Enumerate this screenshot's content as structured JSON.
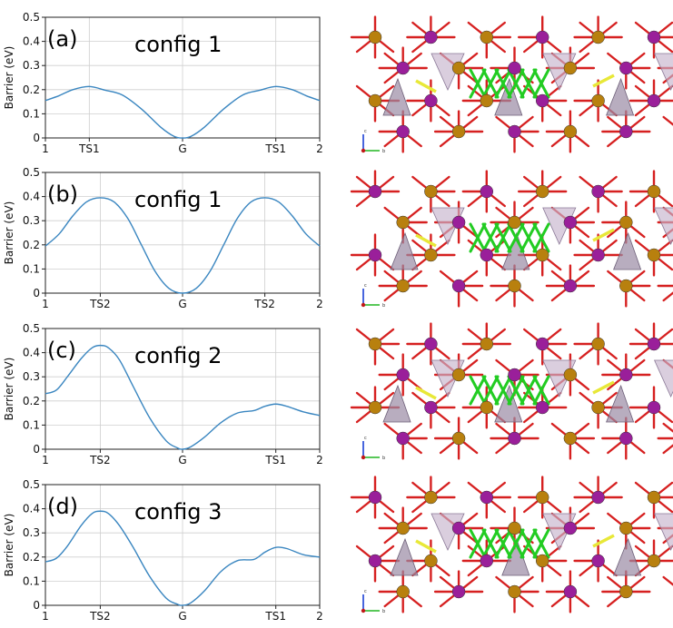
{
  "curve_color": "#3a86c0",
  "atom_colors": {
    "bond": "#d62020",
    "gold": "#b8800e",
    "purple": "#9a1f9a",
    "green": "#22cc22",
    "yellow": "#e8e838",
    "polyhedron": "#9a8aa4"
  },
  "axis_icon": {
    "c": "c",
    "b": "b"
  },
  "chart_data": [
    {
      "type": "line",
      "panel_label": "(a)",
      "annotation": "config 1",
      "ylabel": "Barrier (eV)",
      "xlabel": "",
      "xlim": [
        0,
        1
      ],
      "ylim": [
        0,
        0.5
      ],
      "yticks": [
        "0",
        "0.1",
        "0.2",
        "0.3",
        "0.4",
        "0.5"
      ],
      "x_ticks": [
        {
          "label": "1",
          "x": 0.0
        },
        {
          "label": "TS1",
          "x": 0.16
        },
        {
          "label": "G",
          "x": 0.5
        },
        {
          "label": "TS1",
          "x": 0.84
        },
        {
          "label": "2",
          "x": 1.0
        }
      ],
      "grid": true,
      "x": [
        0,
        0.05,
        0.1,
        0.16,
        0.22,
        0.28,
        0.35,
        0.42,
        0.47,
        0.5,
        0.53,
        0.58,
        0.65,
        0.72,
        0.78,
        0.84,
        0.9,
        0.95,
        1.0
      ],
      "y": [
        0.155,
        0.175,
        0.2,
        0.213,
        0.197,
        0.178,
        0.12,
        0.045,
        0.006,
        0.0,
        0.006,
        0.045,
        0.12,
        0.178,
        0.197,
        0.213,
        0.2,
        0.175,
        0.155
      ]
    },
    {
      "type": "line",
      "panel_label": "(b)",
      "annotation": "config 1",
      "ylabel": "Barrier (eV)",
      "xlabel": "",
      "xlim": [
        0,
        1
      ],
      "ylim": [
        0,
        0.5
      ],
      "yticks": [
        "0",
        "0.1",
        "0.2",
        "0.3",
        "0.4",
        "0.5"
      ],
      "x_ticks": [
        {
          "label": "1",
          "x": 0.0
        },
        {
          "label": "TS2",
          "x": 0.2
        },
        {
          "label": "G",
          "x": 0.5
        },
        {
          "label": "TS2",
          "x": 0.8
        },
        {
          "label": "2",
          "x": 1.0
        }
      ],
      "grid": true,
      "x": [
        0,
        0.05,
        0.1,
        0.15,
        0.2,
        0.25,
        0.3,
        0.35,
        0.4,
        0.45,
        0.5,
        0.55,
        0.6,
        0.65,
        0.7,
        0.75,
        0.8,
        0.85,
        0.9,
        0.95,
        1.0
      ],
      "y": [
        0.195,
        0.245,
        0.32,
        0.378,
        0.395,
        0.378,
        0.31,
        0.2,
        0.09,
        0.02,
        0.0,
        0.02,
        0.09,
        0.2,
        0.31,
        0.378,
        0.395,
        0.378,
        0.32,
        0.245,
        0.195
      ]
    },
    {
      "type": "line",
      "panel_label": "(c)",
      "annotation": "config 2",
      "ylabel": "Barrier (eV)",
      "xlabel": "",
      "xlim": [
        0,
        1
      ],
      "ylim": [
        0,
        0.5
      ],
      "yticks": [
        "0",
        "0.1",
        "0.2",
        "0.3",
        "0.4",
        "0.5"
      ],
      "x_ticks": [
        {
          "label": "1",
          "x": 0.0
        },
        {
          "label": "TS2",
          "x": 0.2
        },
        {
          "label": "G",
          "x": 0.5
        },
        {
          "label": "TS1",
          "x": 0.84
        },
        {
          "label": "2",
          "x": 1.0
        }
      ],
      "grid": true,
      "x": [
        0,
        0.04,
        0.08,
        0.13,
        0.17,
        0.2,
        0.23,
        0.27,
        0.32,
        0.38,
        0.44,
        0.48,
        0.5,
        0.53,
        0.58,
        0.64,
        0.7,
        0.76,
        0.8,
        0.84,
        0.88,
        0.94,
        1.0
      ],
      "y": [
        0.23,
        0.245,
        0.3,
        0.375,
        0.42,
        0.43,
        0.42,
        0.37,
        0.26,
        0.13,
        0.035,
        0.006,
        0.0,
        0.01,
        0.05,
        0.11,
        0.15,
        0.16,
        0.178,
        0.187,
        0.178,
        0.155,
        0.14
      ]
    },
    {
      "type": "line",
      "panel_label": "(d)",
      "annotation": "config 3",
      "ylabel": "Barrier (eV)",
      "xlabel": "",
      "xlim": [
        0,
        1
      ],
      "ylim": [
        0,
        0.5
      ],
      "yticks": [
        "0",
        "0.1",
        "0.2",
        "0.3",
        "0.4",
        "0.5"
      ],
      "x_ticks": [
        {
          "label": "1",
          "x": 0.0
        },
        {
          "label": "TS2",
          "x": 0.2
        },
        {
          "label": "G",
          "x": 0.5
        },
        {
          "label": "TS1",
          "x": 0.84
        },
        {
          "label": "2",
          "x": 1.0
        }
      ],
      "grid": true,
      "x": [
        0,
        0.04,
        0.08,
        0.13,
        0.17,
        0.2,
        0.23,
        0.27,
        0.32,
        0.38,
        0.44,
        0.48,
        0.5,
        0.53,
        0.58,
        0.64,
        0.7,
        0.76,
        0.8,
        0.84,
        0.88,
        0.94,
        1.0
      ],
      "y": [
        0.18,
        0.195,
        0.245,
        0.33,
        0.38,
        0.39,
        0.38,
        0.33,
        0.24,
        0.12,
        0.03,
        0.005,
        0.0,
        0.01,
        0.06,
        0.14,
        0.185,
        0.19,
        0.22,
        0.24,
        0.235,
        0.21,
        0.2
      ]
    }
  ]
}
